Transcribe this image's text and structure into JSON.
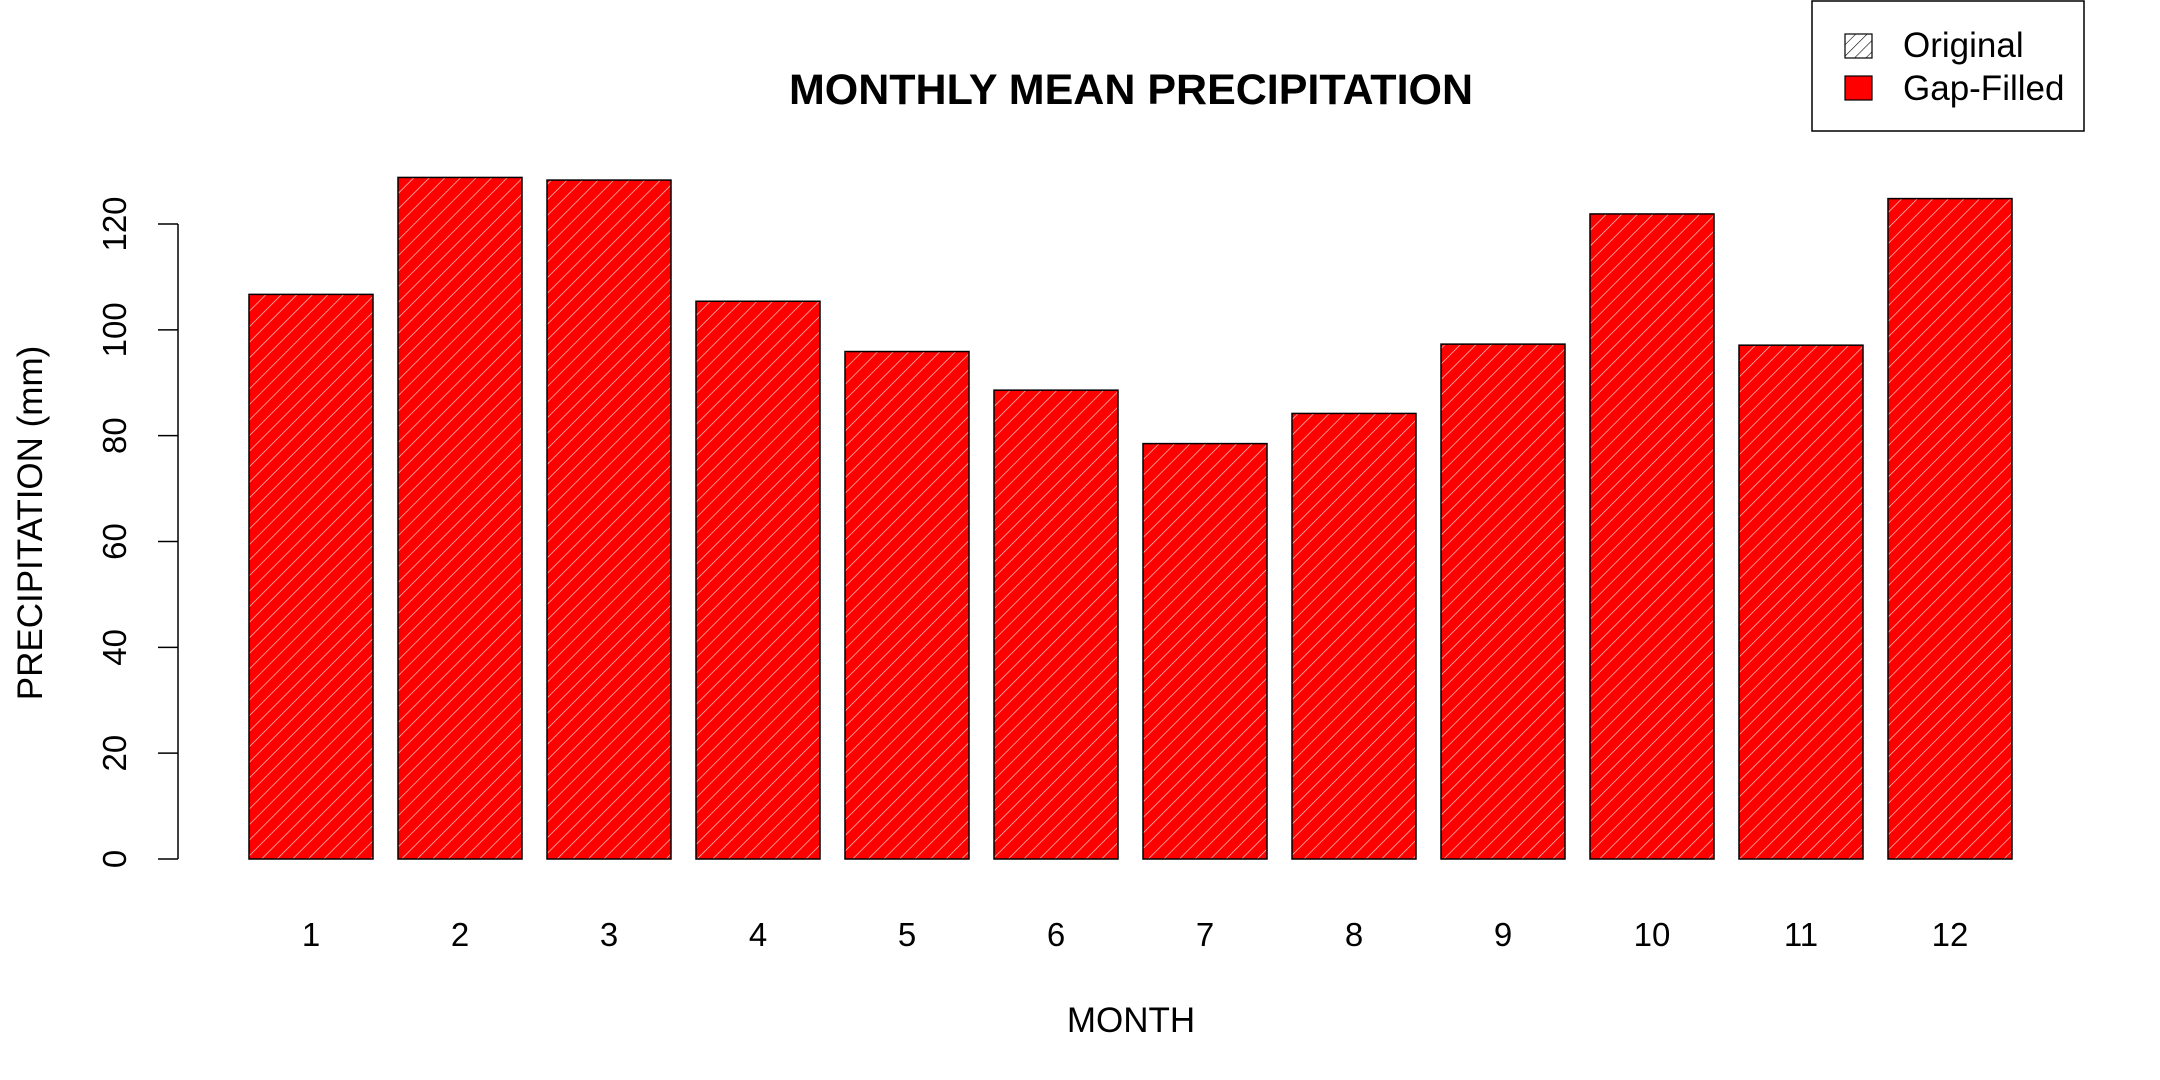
{
  "chart_data": {
    "type": "bar",
    "title": "MONTHLY MEAN PRECIPITATION",
    "xlabel": "MONTH",
    "ylabel": "PRECIPITATION (mm)",
    "categories": [
      "1",
      "2",
      "3",
      "4",
      "5",
      "6",
      "7",
      "8",
      "9",
      "10",
      "11",
      "12"
    ],
    "series": [
      {
        "name": "Gap-Filled",
        "color": "#ff0000",
        "values": [
          106.7,
          128.8,
          128.3,
          105.4,
          95.9,
          88.6,
          78.5,
          84.2,
          97.3,
          121.9,
          97.1,
          124.8
        ]
      },
      {
        "name": "Original",
        "pattern": "diagonal-hatch",
        "values": [
          106.7,
          128.8,
          128.3,
          105.4,
          95.9,
          88.6,
          78.5,
          84.2,
          97.3,
          121.9,
          97.1,
          124.8
        ]
      }
    ],
    "ylim": [
      0,
      130
    ],
    "yticks": [
      0,
      20,
      40,
      60,
      80,
      100,
      120
    ],
    "grid": false,
    "legend": {
      "position": "top-right",
      "entries": [
        {
          "label": "Original",
          "style": "hatch"
        },
        {
          "label": "Gap-Filled",
          "style": "fill",
          "color": "#ff0000"
        }
      ]
    }
  }
}
